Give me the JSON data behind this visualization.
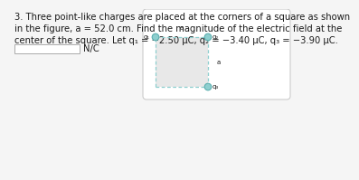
{
  "title_line1": "3. Three point-like charges are placed at the corners of a square as shown",
  "title_line2": "in the figure, a = 52.0 cm. Find the magnitude of the electric field at the",
  "title_line3": "center of the square. Let q₁ = −2.50 μC, q₂ = −3.40 μC, q₃ = −3.90 μC.",
  "answer_label": "N/C",
  "bg_color": "#f5f5f5",
  "box_bg": "#ffffff",
  "square_fill": "#e8e8e8",
  "square_border": "#8ecfcf",
  "charge_fill": "#8ecfcf",
  "charge_edge": "#5aafaf",
  "q1_label": "q₁",
  "q2_label": "q₂",
  "q3_label": "q₃",
  "a_label": "a",
  "text_color": "#1a1a1a",
  "fontsize_main": 7.2,
  "fontsize_diagram": 5.0,
  "input_box_color": "#ffffff",
  "input_box_edge": "#aaaaaa",
  "panel_edge": "#cccccc",
  "panel_bg": "#ffffff"
}
